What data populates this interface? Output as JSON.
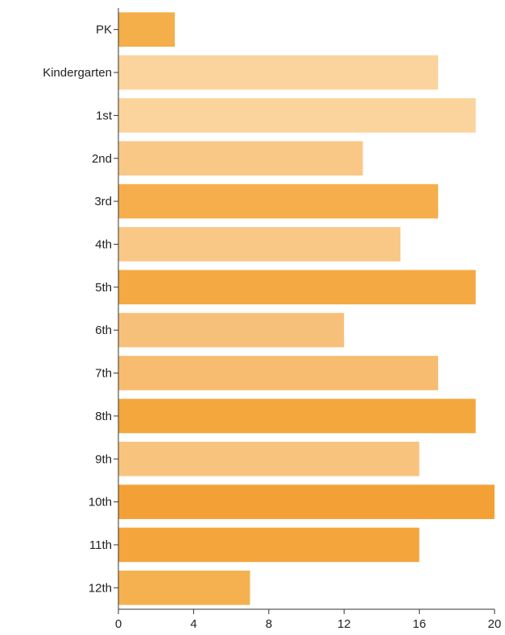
{
  "chart_data": {
    "type": "bar",
    "orientation": "horizontal",
    "title": "",
    "xlabel": "",
    "ylabel": "",
    "categories": [
      "PK",
      "Kindergarten",
      "1st",
      "2nd",
      "3rd",
      "4th",
      "5th",
      "6th",
      "7th",
      "8th",
      "9th",
      "10th",
      "11th",
      "12th"
    ],
    "values": [
      3,
      17,
      19,
      13,
      17,
      15,
      19,
      12,
      17,
      19,
      16,
      20,
      16,
      7
    ],
    "bar_colors": [
      "#f4ae4a",
      "#fbd39c",
      "#fbd39c",
      "#f9c887",
      "#f5ae4b",
      "#f9c887",
      "#f4a942",
      "#f7c07a",
      "#f7bc6f",
      "#f4a73d",
      "#f8c47d",
      "#f3a136",
      "#f4a53c",
      "#f5b14f"
    ],
    "xlim": [
      0,
      20
    ],
    "xticks": [
      0,
      4,
      8,
      12,
      16,
      20
    ],
    "grid": false,
    "legend": "none"
  }
}
